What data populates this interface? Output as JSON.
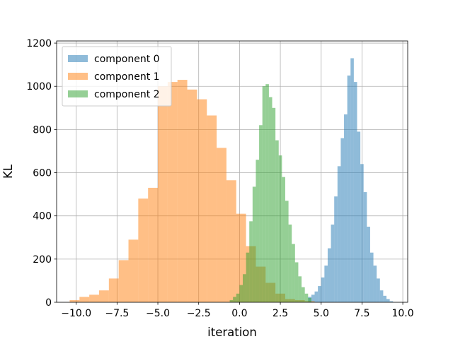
{
  "chart_data": {
    "type": "histogram",
    "title": "",
    "xlabel": "iteration",
    "ylabel": "KL",
    "xlim": [
      -11.2,
      10.3
    ],
    "ylim": [
      0,
      1210
    ],
    "xticks": [
      -10.0,
      -7.5,
      -5.0,
      -2.5,
      0.0,
      2.5,
      5.0,
      7.5,
      10.0
    ],
    "xtick_labels": [
      "−10.0",
      "−7.5",
      "−5.0",
      "−2.5",
      "0.0",
      "2.5",
      "5.0",
      "7.5",
      "10.0"
    ],
    "yticks": [
      0,
      200,
      400,
      600,
      800,
      1000,
      1200
    ],
    "ytick_labels": [
      "0",
      "200",
      "400",
      "600",
      "800",
      "1000",
      "1200"
    ],
    "grid": true,
    "legend": {
      "placement": "upper-left",
      "entries": [
        "component 0",
        "component 1",
        "component 2"
      ]
    },
    "series": [
      {
        "name": "component 0",
        "color": "#1f77b4",
        "alpha": 0.5,
        "bin_width": 0.2,
        "bins": [
          [
            4.2,
            25
          ],
          [
            4.4,
            35
          ],
          [
            4.6,
            50
          ],
          [
            4.8,
            75
          ],
          [
            5.0,
            115
          ],
          [
            5.2,
            170
          ],
          [
            5.4,
            250
          ],
          [
            5.6,
            360
          ],
          [
            5.8,
            490
          ],
          [
            6.0,
            630
          ],
          [
            6.2,
            760
          ],
          [
            6.4,
            870
          ],
          [
            6.6,
            1050
          ],
          [
            6.8,
            1130
          ],
          [
            7.0,
            1020
          ],
          [
            7.2,
            790
          ],
          [
            7.4,
            640
          ],
          [
            7.6,
            510
          ],
          [
            7.8,
            350
          ],
          [
            8.0,
            230
          ],
          [
            8.2,
            170
          ],
          [
            8.4,
            110
          ],
          [
            8.6,
            55
          ],
          [
            8.8,
            30
          ],
          [
            9.0,
            15
          ],
          [
            9.2,
            5
          ]
        ]
      },
      {
        "name": "component 1",
        "color": "#ff7f0e",
        "alpha": 0.5,
        "bin_width": 0.6,
        "bins": [
          [
            -10.4,
            10
          ],
          [
            -9.8,
            25
          ],
          [
            -9.2,
            35
          ],
          [
            -8.6,
            55
          ],
          [
            -8.0,
            110
          ],
          [
            -7.4,
            195
          ],
          [
            -6.8,
            290
          ],
          [
            -6.2,
            480
          ],
          [
            -5.6,
            530
          ],
          [
            -5.0,
            1000
          ],
          [
            -4.4,
            1020
          ],
          [
            -3.8,
            1030
          ],
          [
            -3.2,
            985
          ],
          [
            -2.6,
            940
          ],
          [
            -2.0,
            865
          ],
          [
            -1.4,
            715
          ],
          [
            -0.8,
            565
          ],
          [
            -0.2,
            410
          ],
          [
            0.4,
            260
          ],
          [
            1.0,
            165
          ],
          [
            1.6,
            90
          ],
          [
            2.2,
            40
          ],
          [
            2.8,
            15
          ],
          [
            3.4,
            10
          ],
          [
            4.0,
            5
          ]
        ]
      },
      {
        "name": "component 2",
        "color": "#2ca02c",
        "alpha": 0.5,
        "bin_width": 0.2,
        "bins": [
          [
            -0.6,
            10
          ],
          [
            -0.4,
            25
          ],
          [
            -0.2,
            40
          ],
          [
            0.0,
            80
          ],
          [
            0.2,
            130
          ],
          [
            0.4,
            230
          ],
          [
            0.6,
            375
          ],
          [
            0.8,
            535
          ],
          [
            1.0,
            660
          ],
          [
            1.2,
            820
          ],
          [
            1.4,
            1000
          ],
          [
            1.6,
            1010
          ],
          [
            1.8,
            950
          ],
          [
            2.0,
            900
          ],
          [
            2.2,
            750
          ],
          [
            2.4,
            680
          ],
          [
            2.6,
            580
          ],
          [
            2.8,
            470
          ],
          [
            3.0,
            360
          ],
          [
            3.2,
            270
          ],
          [
            3.4,
            185
          ],
          [
            3.6,
            120
          ],
          [
            3.8,
            70
          ],
          [
            4.0,
            40
          ],
          [
            4.2,
            20
          ]
        ]
      }
    ]
  }
}
